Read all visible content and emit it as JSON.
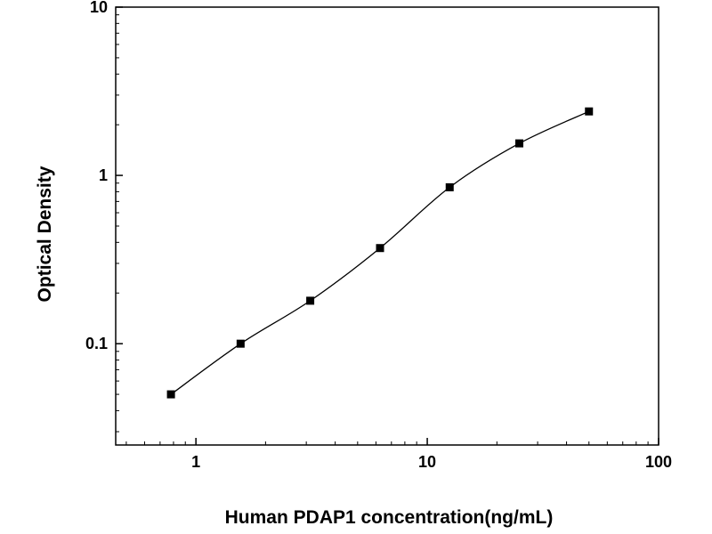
{
  "figure": {
    "background_color": "#ffffff"
  },
  "chart_data": {
    "type": "scatter",
    "subtype": "standard-curve-with-smooth-fit-line",
    "title": "",
    "xlabel": "Human PDAP1 concentration(ng/mL)",
    "ylabel": "Optical Density",
    "x_scale": "log",
    "y_scale": "log",
    "xlim": [
      0.45,
      100
    ],
    "ylim": [
      0.025,
      10
    ],
    "x_ticks": [
      1,
      10,
      100
    ],
    "y_ticks": [
      0.1,
      1,
      10
    ],
    "grid": false,
    "legend": false,
    "marker": "filled-square",
    "marker_color": "#000000",
    "line_color": "#000000",
    "points": [
      {
        "x": 0.78,
        "y": 0.05
      },
      {
        "x": 1.56,
        "y": 0.1
      },
      {
        "x": 3.12,
        "y": 0.18
      },
      {
        "x": 6.25,
        "y": 0.37
      },
      {
        "x": 12.5,
        "y": 0.85
      },
      {
        "x": 25,
        "y": 1.55
      },
      {
        "x": 50,
        "y": 2.4
      }
    ]
  }
}
